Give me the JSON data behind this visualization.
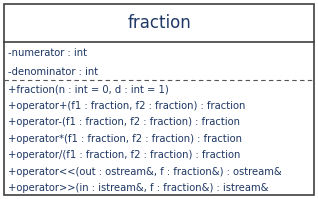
{
  "title": "fraction",
  "attributes": [
    "-numerator : int",
    "-denominator : int"
  ],
  "methods": [
    "+fraction(n : int = 0, d : int = 1)",
    "+operator+(f1 : fraction, f2 : fraction) : fraction",
    "+operator-(f1 : fraction, f2 : fraction) : fraction",
    "+operator*(f1 : fraction, f2 : fraction) : fraction",
    "+operator/(f1 : fraction, f2 : fraction) : fraction",
    "+operator<<(out : ostream&, f : fraction&) : ostream&",
    "+operator>>(in : istream&, f : fraction&) : istream&"
  ],
  "bg_color": "#ffffff",
  "border_color": "#3f3f3f",
  "title_font_size": 12,
  "text_font_size": 7.2,
  "title_color": "#1f3864",
  "text_color": "#1f3864",
  "solid_line_color": "#3f3f3f",
  "dashed_line_color": "#555555"
}
